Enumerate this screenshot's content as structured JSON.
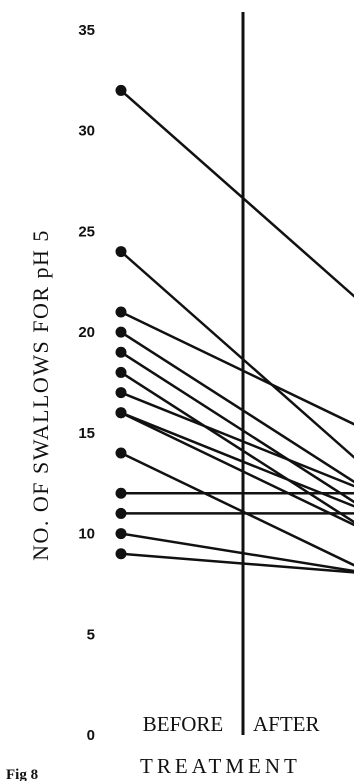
{
  "chart_data": {
    "type": "line",
    "ylabel": "NO. OF SWALLOWS FOR pH 5",
    "xtitle": "TREATMENT",
    "categories": [
      "BEFORE",
      "AFTER"
    ],
    "figure_label": "Fig 8",
    "ylim": [
      0,
      35
    ],
    "yticks": [
      0,
      5,
      10,
      15,
      20,
      25,
      30,
      35
    ],
    "grid": false,
    "series": [
      {
        "values": [
          32,
          21
        ]
      },
      {
        "values": [
          24,
          13
        ]
      },
      {
        "values": [
          21,
          15
        ]
      },
      {
        "values": [
          20,
          12
        ]
      },
      {
        "values": [
          19,
          11
        ]
      },
      {
        "values": [
          18,
          10
        ]
      },
      {
        "values": [
          17,
          12
        ]
      },
      {
        "values": [
          16,
          10
        ]
      },
      {
        "values": [
          16,
          11
        ]
      },
      {
        "values": [
          14,
          8
        ]
      },
      {
        "values": [
          12,
          12
        ]
      },
      {
        "values": [
          11,
          11
        ]
      },
      {
        "values": [
          10,
          8
        ]
      },
      {
        "values": [
          9,
          8
        ]
      }
    ]
  }
}
